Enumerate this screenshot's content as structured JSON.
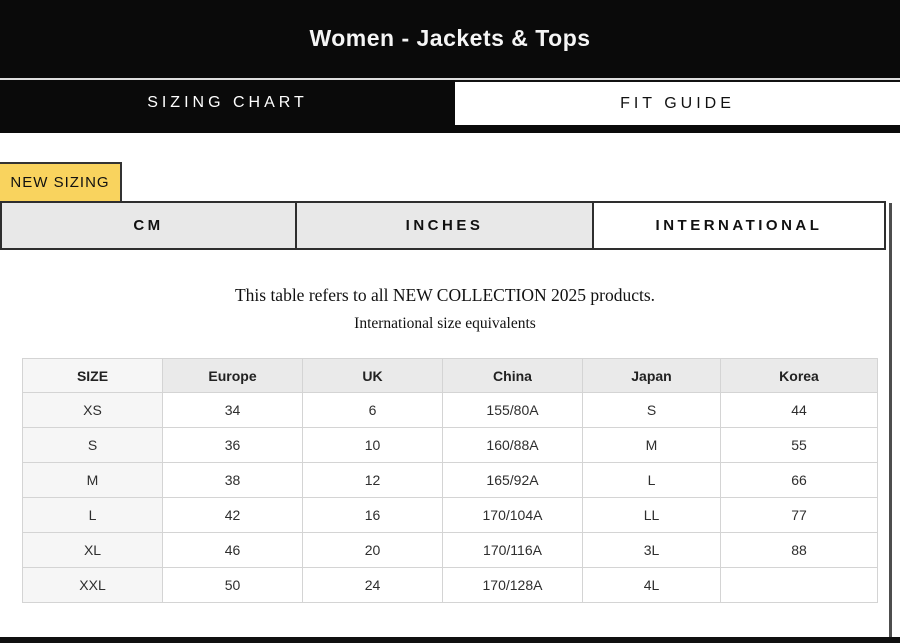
{
  "header": {
    "title": "Women - Jackets & Tops"
  },
  "main_tabs": [
    {
      "label": "SIZING CHART",
      "active": true
    },
    {
      "label": "FIT GUIDE",
      "active": false
    }
  ],
  "badge": {
    "label": "NEW SIZING"
  },
  "unit_tabs": [
    {
      "label": "CM",
      "active": false
    },
    {
      "label": "INCHES",
      "active": false
    },
    {
      "label": "INTERNATIONAL",
      "active": true
    }
  ],
  "notes": {
    "line1": "This table refers to all NEW COLLECTION 2025 products.",
    "line2": "International size equivalents"
  },
  "size_table": {
    "columns": [
      "SIZE",
      "Europe",
      "UK",
      "China",
      "Japan",
      "Korea"
    ],
    "rows": [
      [
        "XS",
        "34",
        "6",
        "155/80A",
        "S",
        "44"
      ],
      [
        "S",
        "36",
        "10",
        "160/88A",
        "M",
        "55"
      ],
      [
        "M",
        "38",
        "12",
        "165/92A",
        "L",
        "66"
      ],
      [
        "L",
        "42",
        "16",
        "170/104A",
        "LL",
        "77"
      ],
      [
        "XL",
        "46",
        "20",
        "170/116A",
        "3L",
        "88"
      ],
      [
        "XXL",
        "50",
        "24",
        "170/128A",
        "4L",
        ""
      ]
    ]
  },
  "colors": {
    "header_bg": "#0a0a0a",
    "accent_yellow": "#f9d35e",
    "tab_inactive_bg": "#e8e8e8",
    "tab_border": "#2e2e2e",
    "table_border": "#d4d4d4",
    "table_header_bg": "#eaeaea",
    "table_first_col_bg": "#f6f6f6"
  }
}
